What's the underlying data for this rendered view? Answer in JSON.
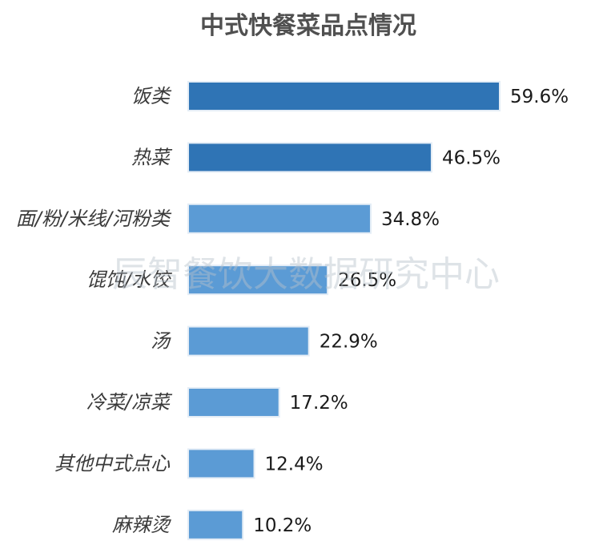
{
  "chart_data": {
    "type": "bar",
    "orientation": "horizontal",
    "title": "中式快餐菜品点情况",
    "categories": [
      "饭类",
      "热菜",
      "面/粉/米线/河粉类",
      "馄饨/水饺",
      "汤",
      "冷菜/凉菜",
      "其他中式点心",
      "麻辣烫"
    ],
    "values": [
      59.6,
      46.5,
      34.8,
      26.5,
      22.9,
      17.2,
      12.4,
      10.2
    ],
    "value_labels": [
      "59.6%",
      "46.5%",
      "34.8%",
      "26.5%",
      "22.9%",
      "17.2%",
      "12.4%",
      "10.2%"
    ],
    "unit": "%",
    "xlabel": "",
    "ylabel": "",
    "grid": false,
    "legend": "none",
    "colors": {
      "bar_dark": "#2f74b5",
      "bar_light": "#5b9bd5"
    },
    "dark_bar_count": 2
  },
  "watermark": "辰智餐饮大数据研究中心"
}
